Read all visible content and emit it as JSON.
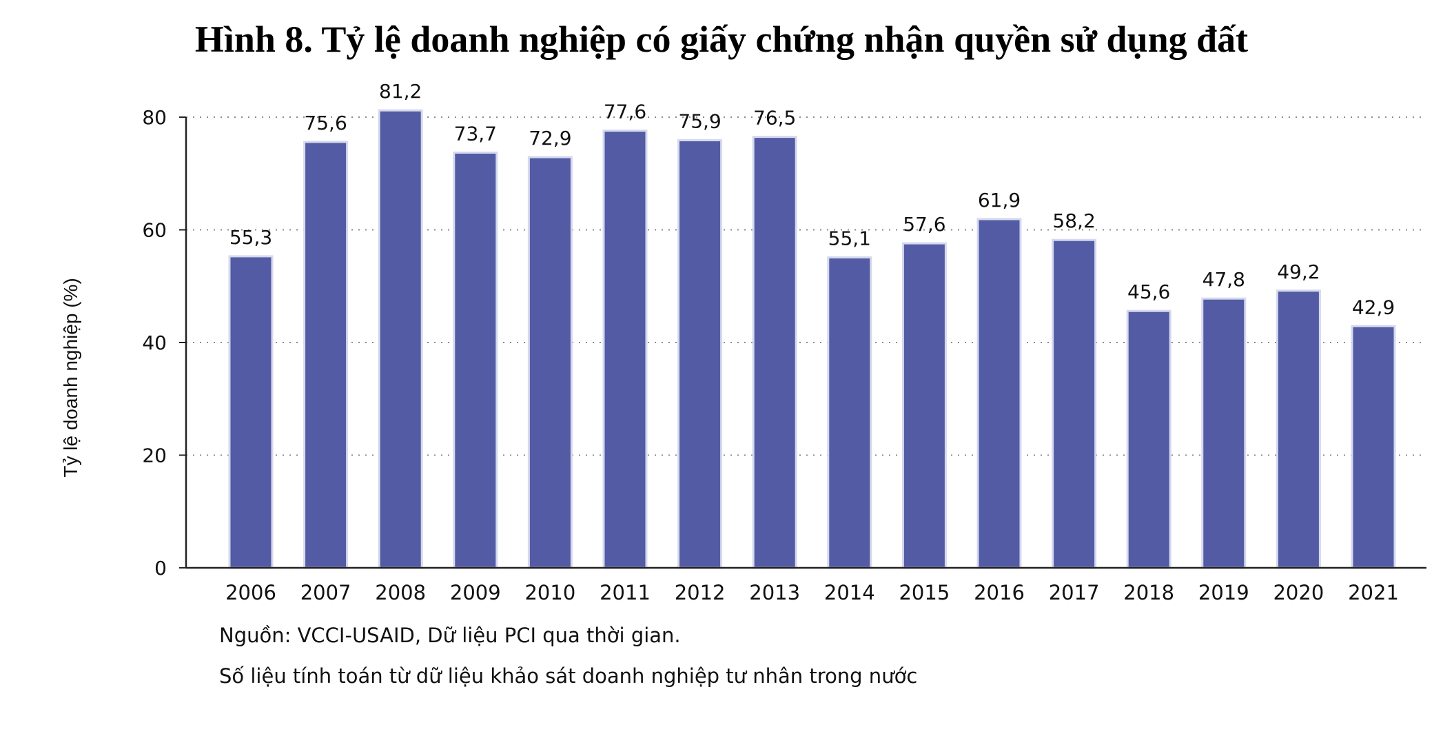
{
  "chart_data": {
    "type": "bar",
    "title": "Hình 8. Tỷ lệ doanh nghiệp có giấy chứng nhận quyền sử dụng đất",
    "ylabel": "Tỷ lệ doanh nghiệp (%)",
    "xlabel": "",
    "categories": [
      "2006",
      "2007",
      "2008",
      "2009",
      "2010",
      "2011",
      "2012",
      "2013",
      "2014",
      "2015",
      "2016",
      "2017",
      "2018",
      "2019",
      "2020",
      "2021"
    ],
    "values": [
      55.3,
      75.6,
      81.2,
      73.7,
      72.9,
      77.6,
      75.9,
      76.5,
      55.1,
      57.6,
      61.9,
      58.2,
      45.6,
      47.8,
      49.2,
      42.9
    ],
    "data_labels": [
      "55,3",
      "75,6",
      "81,2",
      "73,7",
      "72,9",
      "77,6",
      "75,9",
      "76,5",
      "55,1",
      "57,6",
      "61,9",
      "58,2",
      "45,6",
      "47,8",
      "49,2",
      "42,9"
    ],
    "yticks": [
      0,
      20,
      40,
      60,
      80
    ],
    "ylim": [
      0,
      80
    ],
    "grid": "horizontal dotted",
    "bar_color": "#525ba3"
  },
  "notes": {
    "source": "Nguồn: VCCI-USAID, Dữ liệu PCI qua thời gian.",
    "method": "Số liệu tính toán từ dữ liệu khảo sát doanh nghiệp tư nhân trong nước"
  }
}
